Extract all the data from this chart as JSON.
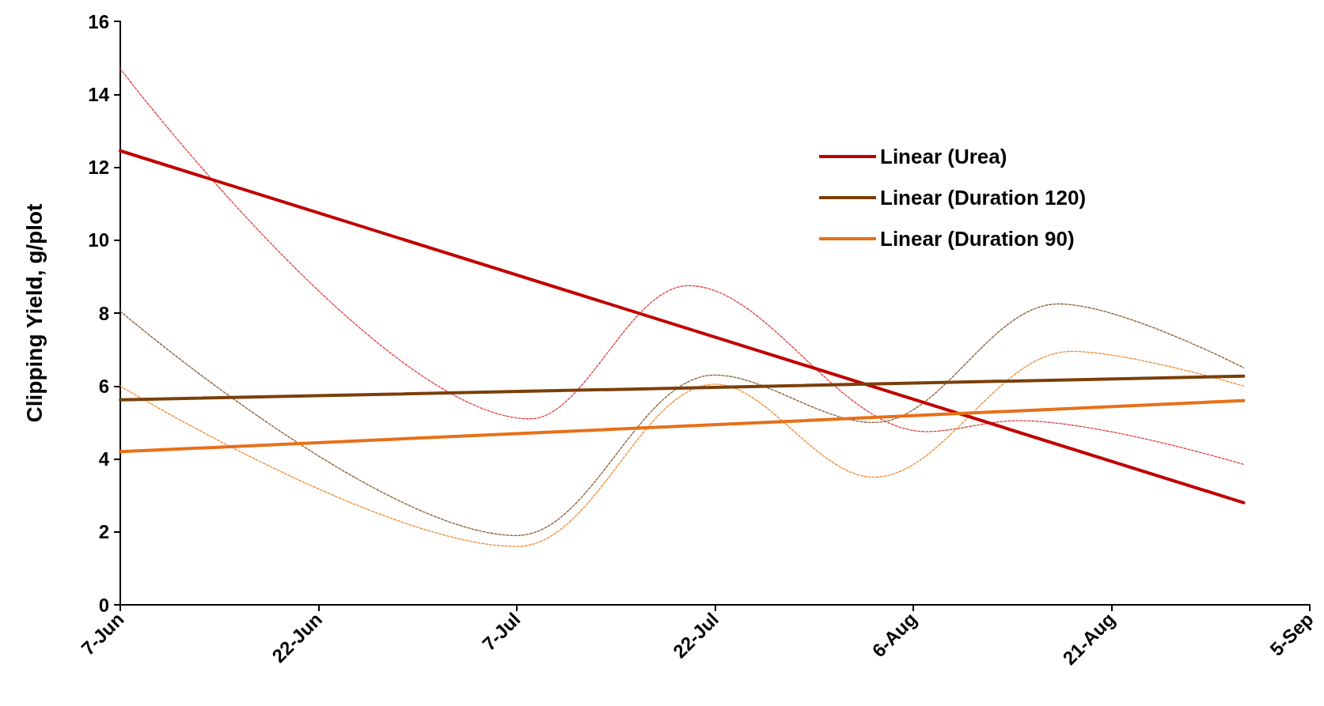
{
  "chart_data": {
    "type": "line",
    "ylabel": "Clipping Yield, g/plot",
    "ylim": [
      0,
      16
    ],
    "yticks": [
      0,
      2,
      4,
      6,
      8,
      10,
      12,
      14,
      16
    ],
    "xlim": [
      "--06-07",
      "--09-05"
    ],
    "xticks": [
      {
        "value": "--06-07",
        "label": "7-Jun"
      },
      {
        "value": "--06-22",
        "label": "22-Jun"
      },
      {
        "value": "--07-07",
        "label": "7-Jul"
      },
      {
        "value": "--07-22",
        "label": "22-Jul"
      },
      {
        "value": "--08-06",
        "label": "6-Aug"
      },
      {
        "value": "--08-21",
        "label": "21-Aug"
      },
      {
        "value": "--09-05",
        "label": "5-Sep"
      }
    ],
    "grid": false,
    "legend": "top right",
    "marker": "none",
    "series": [
      {
        "color": "#e04040",
        "line_style": "dotted",
        "x": [
          "--06-07",
          "--07-08",
          "--07-20",
          "--08-07",
          "--08-14",
          "--08-31"
        ],
        "values": [
          14.7,
          5.1,
          8.75,
          4.75,
          5.05,
          3.85
        ]
      },
      {
        "color": "#8a5a30",
        "line_style": "dotted",
        "x": [
          "--06-07",
          "--07-07",
          "--07-22",
          "--08-03",
          "--08-17",
          "--08-31"
        ],
        "values": [
          8.05,
          1.9,
          6.3,
          5.0,
          8.25,
          6.5
        ]
      },
      {
        "color": "#f08a30",
        "line_style": "dotted",
        "x": [
          "--06-07",
          "--07-07",
          "--07-22",
          "--08-03",
          "--08-18",
          "--08-31"
        ],
        "values": [
          6.0,
          1.6,
          6.05,
          3.5,
          6.95,
          6.0
        ]
      },
      {
        "name": "Linear (Urea)",
        "color": "#c00000",
        "line_style": "solid",
        "x": [
          "--06-07",
          "--08-31"
        ],
        "values": [
          12.45,
          2.8
        ]
      },
      {
        "name": "Linear (Duration 120)",
        "color": "#7a3f0a",
        "line_style": "solid",
        "x": [
          "--06-07",
          "--08-31"
        ],
        "values": [
          5.62,
          6.27
        ]
      },
      {
        "name": "Linear (Duration 90)",
        "color": "#e87018",
        "line_style": "solid",
        "x": [
          "--06-07",
          "--08-31"
        ],
        "values": [
          4.2,
          5.6
        ]
      }
    ]
  }
}
